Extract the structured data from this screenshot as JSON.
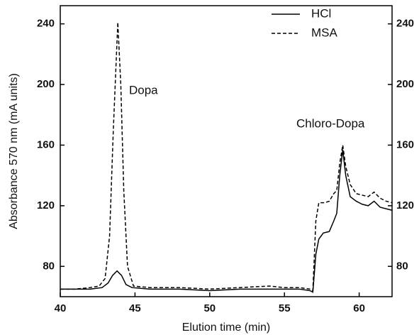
{
  "chart_data": {
    "type": "line",
    "xlabel": "Elution time (min)",
    "ylabel": "Absorbance 570 nm (mA units)",
    "xlim": [
      40,
      62.2
    ],
    "xticks": [
      40,
      45,
      50,
      55,
      60
    ],
    "ylim": [
      60,
      252
    ],
    "yticks": [
      80,
      120,
      160,
      200,
      240
    ],
    "y2lim": [
      60,
      252
    ],
    "y2ticks": [
      80,
      120,
      160,
      200,
      240
    ],
    "legend": "upper right",
    "annotations": [
      "Dopa",
      "Chloro-Dopa"
    ],
    "series": [
      {
        "name": "HCl",
        "color": "#000000",
        "dash": false,
        "x": [
          40,
          41,
          42,
          42.8,
          43.2,
          43.5,
          43.8,
          44.1,
          44.4,
          44.8,
          46,
          48,
          50,
          52,
          54,
          55,
          56,
          56.7,
          56.9,
          57.1,
          57.3,
          57.6,
          58.0,
          58.3,
          58.5,
          58.7,
          58.9,
          59.1,
          59.4,
          59.8,
          60.2,
          60.6,
          61.0,
          61.4,
          61.8,
          62.2
        ],
        "values": [
          65,
          65,
          65,
          66,
          69,
          74,
          77,
          74,
          68,
          66,
          65,
          65,
          64,
          65,
          65,
          65,
          65,
          64,
          63,
          88,
          98,
          102,
          103,
          110,
          115,
          140,
          157,
          140,
          126,
          123,
          121,
          120,
          123,
          119,
          118,
          117
        ]
      },
      {
        "name": "MSA",
        "color": "#000000",
        "dash": true,
        "x": [
          40,
          41,
          42,
          42.6,
          43.0,
          43.3,
          43.55,
          43.85,
          44.05,
          44.25,
          44.5,
          44.9,
          46,
          48,
          50,
          52,
          54,
          55,
          56,
          56.7,
          56.9,
          57.1,
          57.3,
          57.7,
          58.0,
          58.3,
          58.5,
          58.7,
          58.9,
          59.1,
          59.4,
          59.8,
          60.2,
          60.6,
          61.0,
          61.4,
          61.8,
          62.2
        ],
        "values": [
          65,
          65,
          66,
          67,
          72,
          100,
          170,
          241,
          200,
          130,
          80,
          67,
          66,
          66,
          65,
          66,
          67,
          66,
          66,
          65,
          64,
          110,
          122,
          122,
          123,
          128,
          130,
          148,
          160,
          146,
          134,
          128,
          127,
          126,
          129,
          125,
          123,
          122
        ]
      }
    ]
  }
}
